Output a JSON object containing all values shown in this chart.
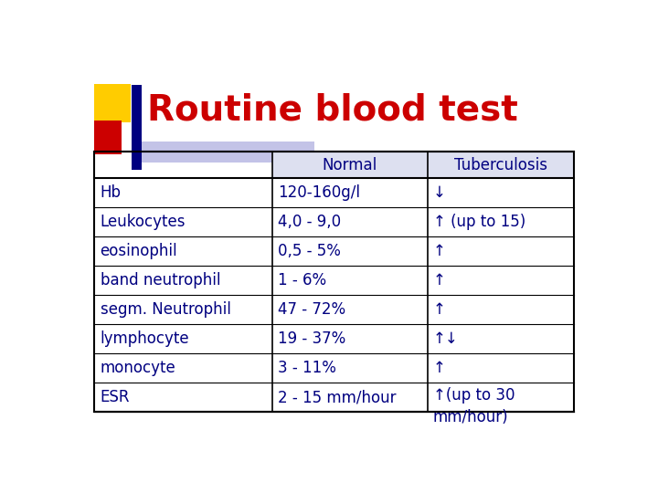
{
  "title": "Routine blood test",
  "title_color": "#cc0000",
  "title_fontsize": 28,
  "header_row": [
    "",
    "Normal",
    "Tuberculosis"
  ],
  "rows": [
    [
      "Hb",
      "120-160g/l",
      "↓"
    ],
    [
      "Leukocytes",
      "4,0 - 9,0",
      "↑ (up to 15)"
    ],
    [
      "eosinophil",
      "0,5 - 5%",
      "↑"
    ],
    [
      "band neutrophil",
      "1 - 6%",
      "↑"
    ],
    [
      "segm. Neutrophil",
      "47 - 72%",
      "↑"
    ],
    [
      "lymphocyte",
      "19 - 37%",
      "↑↓"
    ],
    [
      "monocyte",
      "3 - 11%",
      "↑"
    ],
    [
      "ESR",
      "2 - 15 mm/hour",
      "↑(up to 30\nmm/hour)"
    ]
  ],
  "text_color": "#000080",
  "bg_color": "#ffffff",
  "table_border_color": "#000000",
  "decoration_yellow": "#ffcc00",
  "decoration_red": "#cc0000",
  "decoration_blue": "#000080",
  "decoration_lightblue": "#aaaadd",
  "header_bg": "#dde0f0"
}
